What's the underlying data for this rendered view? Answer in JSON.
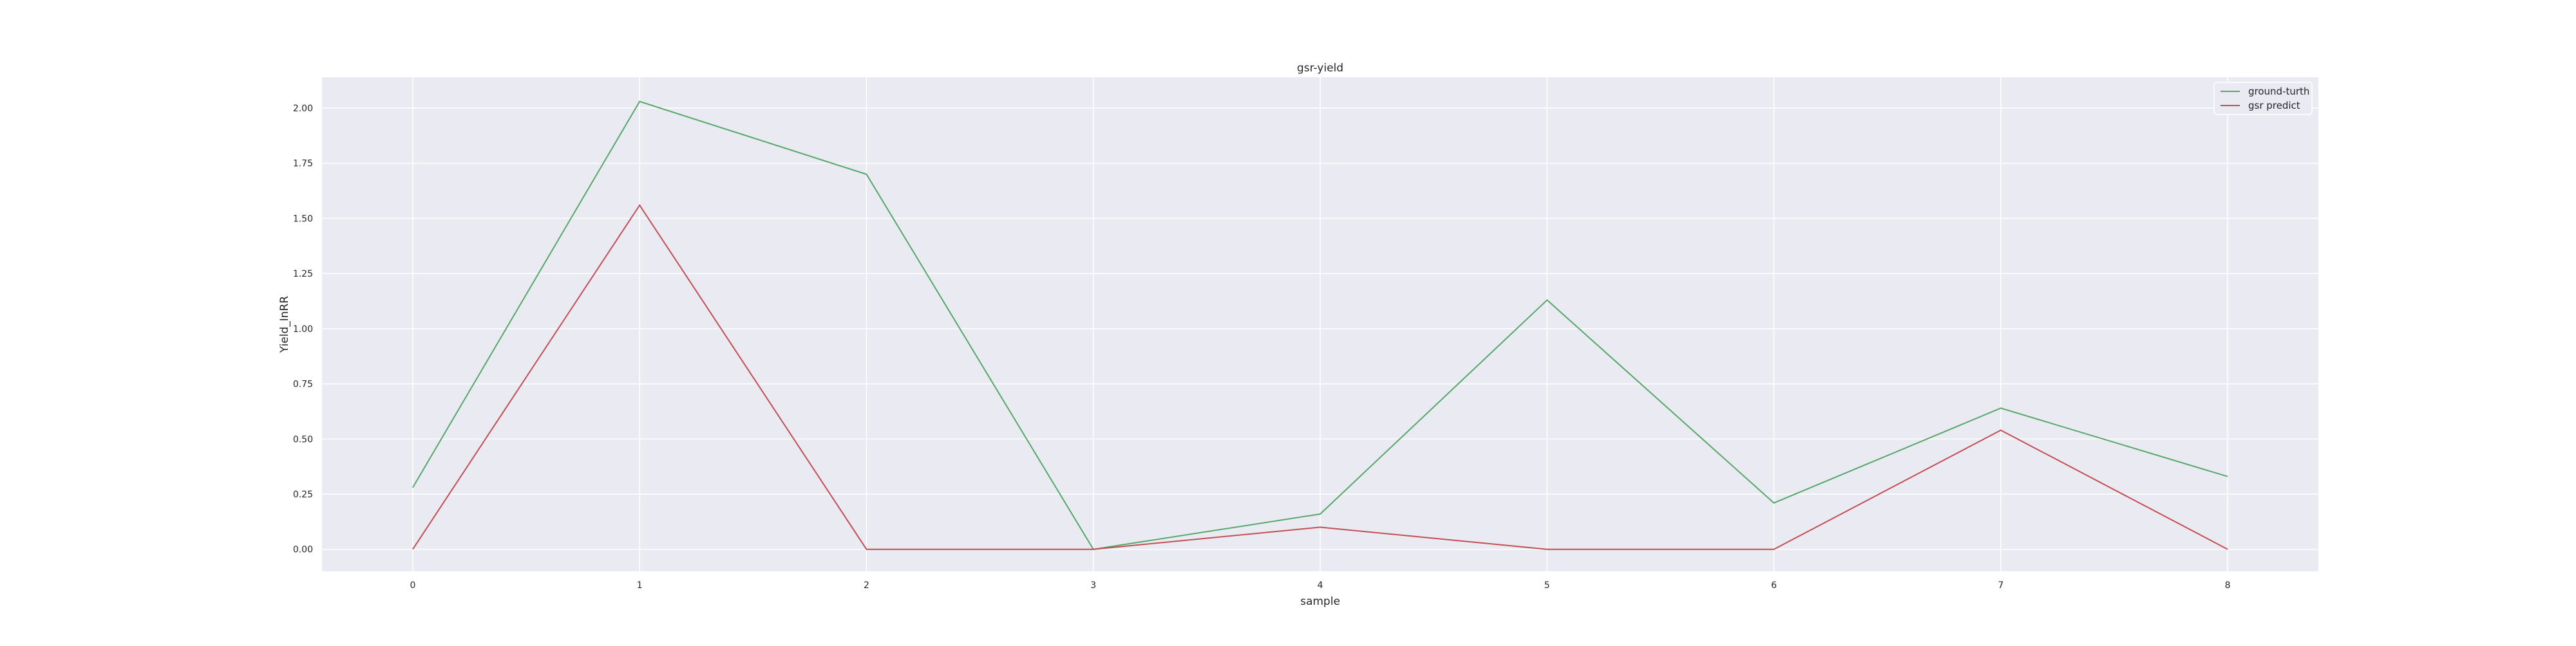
{
  "chart_data": {
    "type": "line",
    "title": "gsr-yield",
    "xlabel": "sample",
    "ylabel": "Yield_InRR",
    "x": [
      0,
      1,
      2,
      3,
      4,
      5,
      6,
      7,
      8
    ],
    "xlim": [
      -0.4,
      8.4
    ],
    "ylim": [
      -0.1,
      2.14
    ],
    "xticks": [
      "0",
      "1",
      "2",
      "3",
      "4",
      "5",
      "6",
      "7",
      "8"
    ],
    "yticks": [
      "0.00",
      "0.25",
      "0.50",
      "0.75",
      "1.00",
      "1.25",
      "1.50",
      "1.75",
      "2.00"
    ],
    "grid": true,
    "legend_position": "top-right",
    "background": "#eaeaf2",
    "series": [
      {
        "name": "ground-turth",
        "color": "#55a868",
        "values": [
          0.28,
          2.03,
          1.7,
          0.0,
          0.16,
          1.13,
          0.21,
          0.64,
          0.33
        ]
      },
      {
        "name": "gsr predict",
        "color": "#c44e52",
        "values": [
          0.0,
          1.56,
          0.0,
          0.0,
          0.1,
          0.0,
          0.0,
          0.54,
          0.0
        ]
      }
    ]
  }
}
